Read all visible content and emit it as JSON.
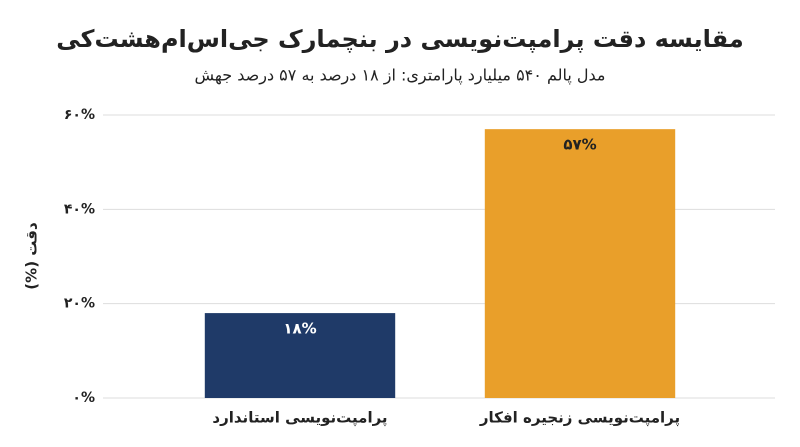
{
  "chart_data": {
    "type": "bar",
    "title": "مقایسه دقت پرامپت‌نویسی در بنچمارک جی‌اس‌ام‌هشت‌کی",
    "subtitle": "مدل پالم ۵۴۰ میلیارد پارامتری: از ۱۸ درصد به ۵۷ درصد جهش",
    "y_label": "دقت (%)",
    "categories": [
      "پرامپت‌نویسی استاندارد",
      "پرامپت‌نویسی زنجیره افکار"
    ],
    "values": [
      18,
      57
    ],
    "value_labels": [
      "۱۸%",
      "۵۷%"
    ],
    "colors": [
      "#1f3a68",
      "#e99f2a"
    ],
    "ylim": [
      0,
      60
    ],
    "yticks": [
      {
        "value": 0,
        "label": "۰%"
      },
      {
        "value": 20,
        "label": "۲۰%"
      },
      {
        "value": 40,
        "label": "۴۰%"
      },
      {
        "value": 60,
        "label": "۶۰%"
      }
    ],
    "grid": true
  }
}
